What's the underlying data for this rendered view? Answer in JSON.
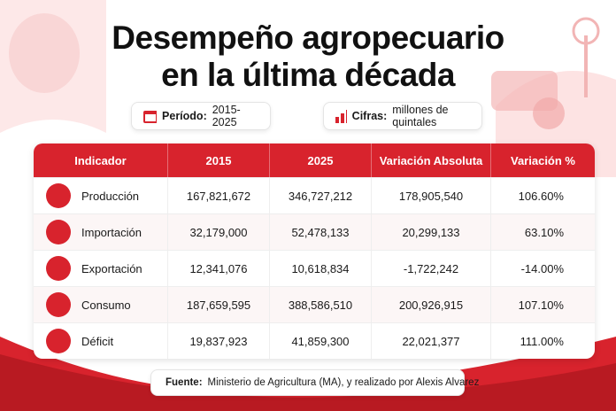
{
  "header": {
    "title_line1": "Desempeño agropecuario",
    "title_line2": "en la última década"
  },
  "badges": [
    {
      "label": "Período:",
      "value": "2015-2025"
    },
    {
      "label": "Cifras:",
      "value": "millones de quintales"
    }
  ],
  "table": {
    "columns": [
      "Indicador",
      "2015",
      "2025",
      "Variación Absoluta",
      "Variación %"
    ],
    "rows": [
      [
        "Producción",
        "167,821,672",
        "346,727,212",
        "178,905,540",
        "106.60%"
      ],
      [
        "Importación",
        "32,179,000",
        "52,478,133",
        "20,299,133",
        "63.10%"
      ],
      [
        "Exportación",
        "12,341,076",
        "10,618,834",
        "-1,722,242",
        "-14.00%"
      ],
      [
        "Consumo",
        "187,659,595",
        "388,586,510",
        "200,926,915",
        "107.10%"
      ],
      [
        "Déficit",
        "19,837,923",
        "41,859,300",
        "22,021,377",
        "111.00%"
      ]
    ]
  },
  "footer": {
    "label": "Fuente:",
    "text": "Ministerio de Agricultura (MA), y realizado por Alexis Alvarez"
  }
}
